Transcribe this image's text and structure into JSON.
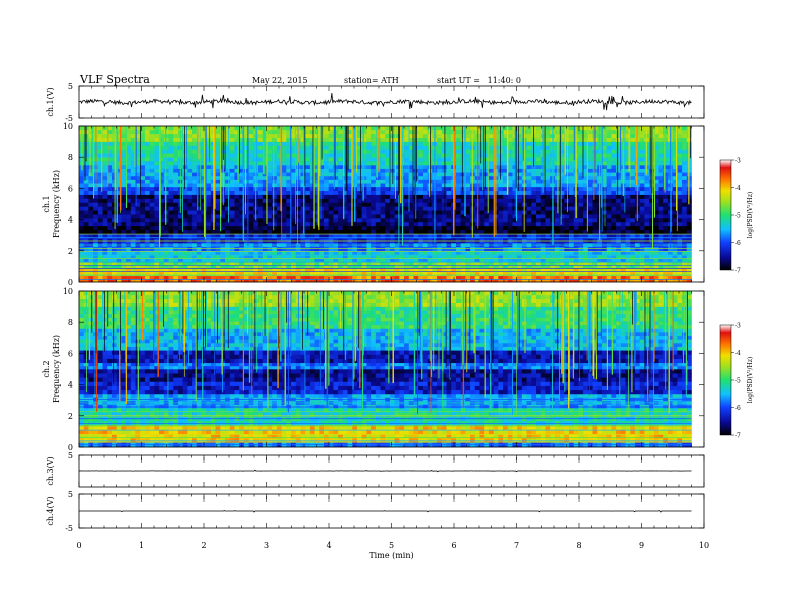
{
  "header": {
    "title": "VLF Spectra",
    "date": "May 22, 2015",
    "station": "station= ATH",
    "start": "start UT =   11:40: 0"
  },
  "chart_data": {
    "type": "heatmap",
    "xlabel": "Time (min)",
    "xlim": [
      0,
      10
    ],
    "xticks": [
      "0",
      "1",
      "2",
      "3",
      "4",
      "5",
      "6",
      "7",
      "8",
      "9",
      "10"
    ],
    "data_end_min": 9.8,
    "panels": [
      {
        "id": "ch1_waveform",
        "type": "line",
        "ylabel": "ch.1(V)",
        "ylim": [
          -5,
          5
        ],
        "yticks": [
          "5",
          "-5"
        ],
        "baseline_V": 0,
        "noise_amplitude_V": 1.5
      },
      {
        "id": "ch1_spectrogram",
        "type": "heatmap",
        "ylabel": "ch.1 Frequency (kHz)",
        "ylim": [
          0,
          10
        ],
        "yticks": [
          "0",
          "2",
          "4",
          "6",
          "8",
          "10"
        ],
        "colorbar": {
          "label": "log(PSD(V²/Hz)",
          "range": [
            -7,
            -3
          ],
          "ticks": [
            "-3",
            "-4",
            "-5",
            "-6",
            "-7"
          ]
        },
        "bands_kHz_logPSD": [
          [
            0.0,
            0.4,
            -3.6
          ],
          [
            0.4,
            0.9,
            -4.1
          ],
          [
            0.9,
            1.3,
            -4.7
          ],
          [
            1.3,
            2.0,
            -5.4
          ],
          [
            2.0,
            2.5,
            -5.8
          ],
          [
            2.5,
            3.1,
            -6.2
          ],
          [
            3.1,
            3.6,
            -6.9
          ],
          [
            3.6,
            5.6,
            -6.6
          ],
          [
            5.6,
            6.1,
            -6.0
          ],
          [
            6.1,
            7.5,
            -5.6
          ],
          [
            7.5,
            9.0,
            -5.2
          ],
          [
            9.0,
            10.0,
            -4.6
          ]
        ]
      },
      {
        "id": "ch2_spectrogram",
        "type": "heatmap",
        "ylabel": "ch.2 Frequency (kHz)",
        "ylim": [
          0,
          10
        ],
        "yticks": [
          "0",
          "2",
          "4",
          "6",
          "8",
          "10"
        ],
        "colorbar": {
          "label": "log(PSD(V²/Hz)",
          "range": [
            -7,
            -3
          ],
          "ticks": [
            "-3",
            "-4",
            "-5",
            "-6",
            "-7"
          ]
        },
        "bands_kHz_logPSD": [
          [
            0.0,
            0.3,
            -5.8
          ],
          [
            0.3,
            1.4,
            -4.0
          ],
          [
            1.4,
            2.5,
            -5.2
          ],
          [
            2.5,
            3.4,
            -5.6
          ],
          [
            3.4,
            4.2,
            -6.3
          ],
          [
            4.2,
            5.0,
            -6.5
          ],
          [
            5.0,
            5.4,
            -5.8
          ],
          [
            5.4,
            6.2,
            -6.4
          ],
          [
            6.2,
            7.6,
            -5.5
          ],
          [
            7.6,
            9.0,
            -5.0
          ],
          [
            9.0,
            10.0,
            -4.5
          ]
        ]
      },
      {
        "id": "ch3_waveform",
        "type": "line",
        "ylabel": "ch.3(V)",
        "ylim": [
          -5,
          5
        ],
        "yticks": [
          "5"
        ],
        "baseline_V": 0,
        "noise_amplitude_V": 0.05
      },
      {
        "id": "ch4_waveform",
        "type": "line",
        "ylabel": "ch.4(V)",
        "ylim": [
          -5,
          5
        ],
        "yticks": [
          "5",
          "-5"
        ],
        "baseline_V": 0,
        "noise_amplitude_V": 0.02
      }
    ]
  },
  "colors": {
    "scale": [
      "#000000",
      "#0a0a9a",
      "#1040ff",
      "#10c0ff",
      "#20e070",
      "#9fe020",
      "#f0e000",
      "#ff7000",
      "#e01010",
      "#ffffff"
    ],
    "trace": "#000000"
  }
}
